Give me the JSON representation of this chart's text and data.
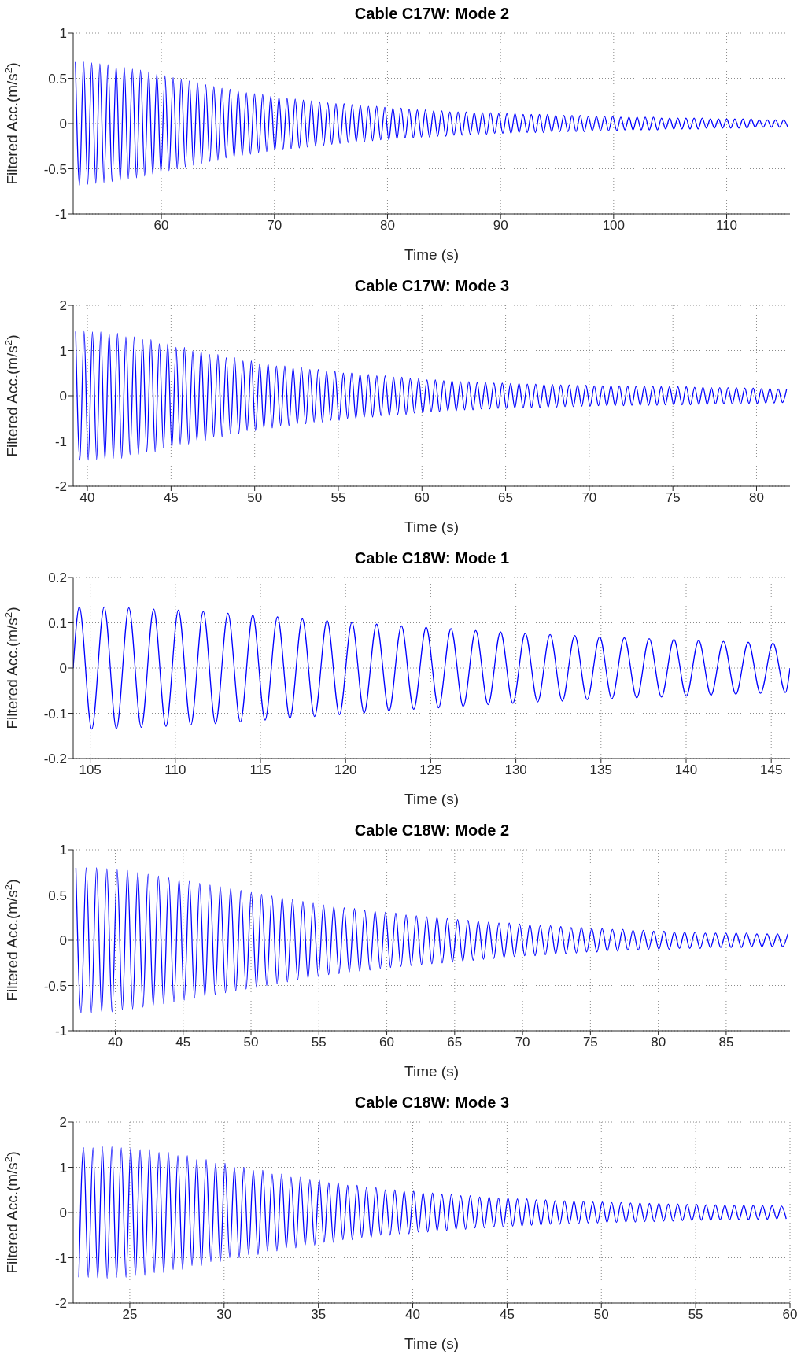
{
  "chart_data": [
    {
      "type": "line",
      "title": "Cable C17W: Mode 2",
      "xlabel": "Time (s)",
      "ylabel": "Filtered Acc.(m/s$^{2}$)",
      "xlim": [
        52.2,
        115.6
      ],
      "xticks": [
        60,
        70,
        80,
        90,
        100,
        110
      ],
      "ylim": [
        -1,
        1
      ],
      "yticks": [
        -1,
        -0.5,
        0,
        0.5,
        1
      ],
      "grid": true,
      "x": [
        52.4,
        52.76,
        53.12,
        53.48,
        53.84,
        54.2,
        54.56,
        54.92,
        55.28,
        55.64,
        56,
        56.36,
        56.72,
        57.08,
        57.44,
        57.8,
        58.16,
        58.52,
        58.88,
        59.24,
        59.6,
        59.96,
        60.32,
        60.68,
        61.04,
        61.4,
        61.76,
        62.12,
        62.48,
        62.84,
        63.2,
        63.56,
        63.92,
        64.28,
        64.64,
        65,
        65.36,
        65.72,
        66.08,
        66.44,
        66.8,
        67.16,
        67.52,
        67.88,
        68.24,
        68.6,
        68.96,
        69.32,
        69.68,
        70.04,
        70.4,
        70.76,
        71.12,
        71.48,
        71.84,
        72.2,
        72.56,
        72.92,
        73.28,
        73.64,
        74,
        74.36,
        74.72,
        75.08,
        75.44,
        75.8,
        76.16,
        76.52,
        76.88,
        77.24,
        77.6,
        77.96,
        78.32,
        78.68,
        79.04,
        79.4,
        79.76,
        80.12,
        80.48,
        80.84,
        81.2,
        81.56,
        81.92,
        82.28,
        82.64,
        83,
        83.36,
        83.72,
        84.08,
        84.44,
        84.8,
        85.16,
        85.52,
        85.88,
        86.24,
        86.6,
        86.96,
        87.32,
        87.68,
        88.04,
        88.4,
        88.76,
        89.12,
        89.48,
        89.84,
        90.2,
        90.56,
        90.92,
        91.28,
        91.64,
        92,
        92.36,
        92.72,
        93.08,
        93.44,
        93.8,
        94.16,
        94.52,
        94.88,
        95.24,
        95.6,
        95.96,
        96.32,
        96.68,
        97.04,
        97.4,
        97.76,
        98.12,
        98.48,
        98.84,
        99.2,
        99.56,
        99.92,
        100.28,
        100.64,
        101,
        101.36,
        101.72,
        102.08,
        102.44,
        102.8,
        103.16,
        103.52,
        103.88,
        104.24,
        104.6,
        104.96,
        105.32,
        105.68,
        106.04,
        106.4,
        106.76,
        107.12,
        107.48,
        107.84,
        108.2,
        108.56,
        108.92,
        109.28,
        109.64,
        110,
        110.36,
        110.72,
        111.08,
        111.44,
        111.8,
        112.16,
        112.52,
        112.88,
        113.24,
        113.6,
        113.96,
        114.32,
        114.68,
        115.04,
        115.4
      ],
      "series": [
        {
          "color": "#0000ff",
          "values": [
            0.68,
            -0.68,
            0.68,
            -0.67,
            0.67,
            -0.66,
            0.66,
            -0.65,
            0.65,
            -0.64,
            0.63,
            -0.63,
            0.62,
            -0.61,
            0.6,
            -0.6,
            0.59,
            -0.58,
            0.57,
            -0.56,
            0.55,
            -0.54,
            0.53,
            -0.52,
            0.51,
            -0.5,
            0.49,
            -0.48,
            0.47,
            -0.46,
            0.45,
            -0.44,
            0.43,
            -0.42,
            0.41,
            -0.4,
            0.39,
            -0.38,
            0.38,
            -0.37,
            0.36,
            -0.35,
            0.34,
            -0.34,
            0.33,
            -0.32,
            0.32,
            -0.31,
            0.3,
            -0.3,
            0.29,
            -0.29,
            0.28,
            -0.28,
            0.27,
            -0.27,
            0.26,
            -0.26,
            0.25,
            -0.25,
            0.24,
            -0.24,
            0.23,
            -0.23,
            0.22,
            -0.22,
            0.22,
            -0.21,
            0.21,
            -0.2,
            0.2,
            -0.2,
            0.19,
            -0.19,
            0.19,
            -0.18,
            0.18,
            -0.18,
            0.17,
            -0.17,
            0.17,
            -0.16,
            0.16,
            -0.16,
            0.15,
            -0.15,
            0.15,
            -0.15,
            0.14,
            -0.14,
            0.14,
            -0.14,
            0.13,
            -0.13,
            0.13,
            -0.13,
            0.13,
            -0.12,
            0.12,
            -0.12,
            0.12,
            -0.12,
            0.12,
            -0.11,
            0.11,
            -0.11,
            0.11,
            -0.11,
            0.11,
            -0.1,
            0.1,
            -0.1,
            0.1,
            -0.1,
            0.1,
            -0.1,
            0.1,
            -0.09,
            0.09,
            -0.09,
            0.09,
            -0.09,
            0.09,
            -0.09,
            0.09,
            -0.09,
            0.08,
            -0.08,
            0.08,
            -0.08,
            0.08,
            -0.08,
            0.08,
            -0.08,
            0.07,
            -0.07,
            0.07,
            -0.07,
            0.07,
            -0.07,
            0.07,
            -0.07,
            0.07,
            -0.07,
            0.06,
            -0.06,
            0.06,
            -0.06,
            0.06,
            -0.06,
            0.06,
            -0.06,
            0.06,
            -0.06,
            0.06,
            -0.05,
            0.05,
            -0.05,
            0.05,
            -0.05,
            0.05,
            -0.05,
            0.05,
            -0.05,
            0.05,
            -0.05,
            0.05,
            -0.04,
            0.04,
            -0.04,
            0.04,
            -0.04,
            0.04,
            -0.04,
            0.04,
            -0.04
          ]
        }
      ]
    },
    {
      "type": "line",
      "title": "Cable C17W: Mode 3",
      "xlabel": "Time (s)",
      "ylabel": "Filtered Acc.(m/s$^{2}$)",
      "xlim": [
        39.15,
        82
      ],
      "xticks": [
        40,
        45,
        50,
        55,
        60,
        65,
        70,
        75,
        80
      ],
      "ylim": [
        -2,
        2
      ],
      "yticks": [
        -2,
        -1,
        0,
        1,
        2
      ],
      "grid": true,
      "x": [
        39.3,
        39.55,
        39.8,
        40.05,
        40.3,
        40.55,
        40.8,
        41.05,
        41.3,
        41.55,
        41.8,
        42.05,
        42.3,
        42.55,
        42.8,
        43.05,
        43.3,
        43.55,
        43.8,
        44.05,
        44.3,
        44.55,
        44.8,
        45.05,
        45.3,
        45.55,
        45.8,
        46.05,
        46.3,
        46.55,
        46.8,
        47.05,
        47.3,
        47.55,
        47.8,
        48.05,
        48.3,
        48.55,
        48.8,
        49.05,
        49.3,
        49.55,
        49.8,
        50.05,
        50.3,
        50.55,
        50.8,
        51.05,
        51.3,
        51.55,
        51.8,
        52.05,
        52.3,
        52.55,
        52.8,
        53.05,
        53.3,
        53.55,
        53.8,
        54.05,
        54.3,
        54.55,
        54.8,
        55.05,
        55.3,
        55.55,
        55.8,
        56.05,
        56.3,
        56.55,
        56.8,
        57.05,
        57.3,
        57.55,
        57.8,
        58.05,
        58.3,
        58.55,
        58.8,
        59.05,
        59.3,
        59.55,
        59.8,
        60.05,
        60.3,
        60.55,
        60.8,
        61.05,
        61.3,
        61.55,
        61.8,
        62.05,
        62.3,
        62.55,
        62.8,
        63.05,
        63.3,
        63.55,
        63.8,
        64.05,
        64.3,
        64.55,
        64.8,
        65.05,
        65.3,
        65.55,
        65.8,
        66.05,
        66.3,
        66.55,
        66.8,
        67.05,
        67.3,
        67.55,
        67.8,
        68.05,
        68.3,
        68.55,
        68.8,
        69.05,
        69.3,
        69.55,
        69.8,
        70.05,
        70.3,
        70.55,
        70.8,
        71.05,
        71.3,
        71.55,
        71.8,
        72.05,
        72.3,
        72.55,
        72.8,
        73.05,
        73.3,
        73.55,
        73.8,
        74.05,
        74.3,
        74.55,
        74.8,
        75.05,
        75.3,
        75.55,
        75.8,
        76.05,
        76.3,
        76.55,
        76.8,
        77.05,
        77.3,
        77.55,
        77.8,
        78.05,
        78.3,
        78.55,
        78.8,
        79.05,
        79.3,
        79.55,
        79.8,
        80.05,
        80.3,
        80.55,
        80.8,
        81.05,
        81.3,
        81.55,
        81.8
      ],
      "series": [
        {
          "color": "#0000ff",
          "values": [
            1.42,
            -1.42,
            1.42,
            -1.42,
            1.41,
            -1.41,
            1.41,
            -1.41,
            1.38,
            -1.38,
            1.38,
            -1.38,
            1.3,
            -1.3,
            1.3,
            -1.3,
            1.24,
            -1.24,
            1.24,
            -1.24,
            1.15,
            -1.15,
            1.15,
            -1.15,
            1.07,
            -1.07,
            1.07,
            -1.07,
            0.99,
            -0.99,
            0.99,
            -0.99,
            0.91,
            -0.91,
            0.91,
            -0.91,
            0.84,
            -0.84,
            0.84,
            -0.84,
            0.77,
            -0.77,
            0.77,
            -0.77,
            0.71,
            -0.71,
            0.71,
            -0.71,
            0.66,
            -0.66,
            0.66,
            -0.66,
            0.62,
            -0.62,
            0.62,
            -0.62,
            0.58,
            -0.58,
            0.58,
            -0.58,
            0.54,
            -0.54,
            0.54,
            -0.54,
            0.5,
            -0.5,
            0.5,
            -0.5,
            0.47,
            -0.47,
            0.47,
            -0.47,
            0.44,
            -0.44,
            0.44,
            -0.44,
            0.41,
            -0.41,
            0.41,
            -0.41,
            0.38,
            -0.38,
            0.38,
            -0.38,
            0.35,
            -0.35,
            0.35,
            -0.35,
            0.33,
            -0.33,
            0.33,
            -0.33,
            0.31,
            -0.31,
            0.31,
            -0.31,
            0.29,
            -0.29,
            0.29,
            -0.29,
            0.28,
            -0.28,
            0.28,
            -0.28,
            0.27,
            -0.27,
            0.27,
            -0.27,
            0.26,
            -0.26,
            0.26,
            -0.26,
            0.25,
            -0.25,
            0.25,
            -0.25,
            0.24,
            -0.24,
            0.24,
            -0.24,
            0.23,
            -0.23,
            0.23,
            -0.23,
            0.22,
            -0.22,
            0.22,
            -0.22,
            0.22,
            -0.22,
            0.22,
            -0.22,
            0.21,
            -0.21,
            0.21,
            -0.21,
            0.21,
            -0.21,
            0.21,
            -0.21,
            0.2,
            -0.2,
            0.2,
            -0.2,
            0.2,
            -0.2,
            0.2,
            -0.2,
            0.19,
            -0.19,
            0.19,
            -0.19,
            0.18,
            -0.18,
            0.18,
            -0.18,
            0.18,
            -0.18,
            0.18,
            -0.18,
            0.17,
            -0.17,
            0.17,
            -0.17,
            0.16,
            -0.16,
            0.16,
            -0.16,
            0.15,
            -0.15,
            0.15
          ]
        }
      ]
    },
    {
      "type": "line",
      "title": "Cable C18W: Mode 1",
      "xlabel": "Time (s)",
      "ylabel": "Filtered Acc.(m/s$^{2}$)",
      "xlim": [
        104,
        146.1
      ],
      "xticks": [
        105,
        110,
        115,
        120,
        125,
        130,
        135,
        140,
        145
      ],
      "ylim": [
        -0.2,
        0.2
      ],
      "yticks": [
        -0.2,
        -0.1,
        0,
        0.1,
        0.2
      ],
      "grid": true,
      "x": [
        104,
        104.36,
        105.09,
        105.82,
        106.54,
        107.27,
        108,
        108.73,
        109.45,
        110.18,
        110.91,
        111.64,
        112.36,
        113.09,
        113.82,
        114.55,
        115.27,
        116,
        116.73,
        117.46,
        118.18,
        118.91,
        119.64,
        120.37,
        121.09,
        121.82,
        122.55,
        123.28,
        124,
        124.73,
        125.46,
        126.19,
        126.91,
        127.64,
        128.37,
        129.1,
        129.82,
        130.55,
        131.28,
        132.01,
        132.73,
        133.46,
        134.19,
        134.92,
        135.64,
        136.37,
        137.1,
        137.83,
        138.55,
        139.28,
        140.01,
        140.74,
        141.46,
        142.19,
        142.92,
        143.65,
        144.37,
        145.1,
        145.83,
        146.1
      ],
      "series": [
        {
          "color": "#0000ff",
          "values": [
            0,
            0.135,
            -0.135,
            0.135,
            -0.134,
            0.133,
            -0.131,
            0.13,
            -0.129,
            0.128,
            -0.126,
            0.125,
            -0.123,
            0.121,
            -0.119,
            0.117,
            -0.115,
            0.113,
            -0.111,
            0.109,
            -0.107,
            0.105,
            -0.103,
            0.101,
            -0.099,
            0.097,
            -0.095,
            0.093,
            -0.091,
            0.09,
            -0.088,
            0.087,
            -0.085,
            0.083,
            -0.081,
            0.08,
            -0.078,
            0.077,
            -0.075,
            0.074,
            -0.073,
            0.072,
            -0.07,
            0.069,
            -0.068,
            0.067,
            -0.066,
            0.065,
            -0.064,
            0.063,
            -0.062,
            0.061,
            -0.06,
            0.059,
            -0.058,
            0.057,
            -0.056,
            0.055,
            -0.054,
            0
          ]
        }
      ]
    },
    {
      "type": "line",
      "title": "Cable C18W: Mode 2",
      "xlabel": "Time (s)",
      "ylabel": "Filtered Acc.(m/s$^{2}$)",
      "xlim": [
        36.9,
        89.7
      ],
      "xticks": [
        40,
        45,
        50,
        55,
        60,
        65,
        70,
        75,
        80,
        85
      ],
      "ylim": [
        -1,
        1
      ],
      "yticks": [
        -1,
        -0.5,
        0,
        0.5,
        1
      ],
      "grid": true,
      "x": [
        37.1,
        37.48,
        37.86,
        38.24,
        38.62,
        39,
        39.38,
        39.76,
        40.14,
        40.52,
        40.9,
        41.28,
        41.66,
        42.04,
        42.42,
        42.8,
        43.18,
        43.56,
        43.94,
        44.32,
        44.7,
        45.08,
        45.46,
        45.84,
        46.22,
        46.6,
        46.98,
        47.36,
        47.74,
        48.12,
        48.5,
        48.88,
        49.26,
        49.64,
        50.02,
        50.4,
        50.78,
        51.16,
        51.54,
        51.92,
        52.3,
        52.68,
        53.06,
        53.44,
        53.82,
        54.2,
        54.58,
        54.96,
        55.34,
        55.72,
        56.1,
        56.48,
        56.86,
        57.24,
        57.62,
        58,
        58.38,
        58.76,
        59.14,
        59.52,
        59.9,
        60.28,
        60.66,
        61.04,
        61.42,
        61.8,
        62.18,
        62.56,
        62.94,
        63.32,
        63.7,
        64.08,
        64.46,
        64.84,
        65.22,
        65.6,
        65.98,
        66.36,
        66.74,
        67.12,
        67.5,
        67.88,
        68.26,
        68.64,
        69.02,
        69.4,
        69.78,
        70.16,
        70.54,
        70.92,
        71.3,
        71.68,
        72.06,
        72.44,
        72.82,
        73.2,
        73.58,
        73.96,
        74.34,
        74.72,
        75.1,
        75.48,
        75.86,
        76.24,
        76.62,
        77,
        77.38,
        77.76,
        78.14,
        78.52,
        78.9,
        79.28,
        79.66,
        80.04,
        80.42,
        80.8,
        81.18,
        81.56,
        81.94,
        82.32,
        82.7,
        83.08,
        83.46,
        83.84,
        84.22,
        84.6,
        84.98,
        85.36,
        85.74,
        86.12,
        86.5,
        86.88,
        87.26,
        87.64,
        88.02,
        88.4,
        88.78,
        89.16,
        89.54
      ],
      "series": [
        {
          "color": "#0000ff",
          "values": [
            0.8,
            -0.8,
            0.8,
            -0.8,
            0.8,
            -0.79,
            0.79,
            -0.79,
            0.78,
            -0.77,
            0.77,
            -0.76,
            0.75,
            -0.74,
            0.73,
            -0.72,
            0.71,
            -0.7,
            0.69,
            -0.68,
            0.67,
            -0.66,
            0.65,
            -0.64,
            0.63,
            -0.62,
            0.61,
            -0.6,
            0.59,
            -0.58,
            0.57,
            -0.56,
            0.55,
            -0.54,
            0.53,
            -0.52,
            0.51,
            -0.5,
            0.49,
            -0.48,
            0.47,
            -0.46,
            0.45,
            -0.44,
            0.43,
            -0.42,
            0.41,
            -0.4,
            0.39,
            -0.38,
            0.37,
            -0.37,
            0.36,
            -0.35,
            0.35,
            -0.34,
            0.33,
            -0.33,
            0.32,
            -0.31,
            0.31,
            -0.3,
            0.3,
            -0.29,
            0.28,
            -0.28,
            0.27,
            -0.27,
            0.26,
            -0.26,
            0.25,
            -0.25,
            0.24,
            -0.24,
            0.23,
            -0.23,
            0.22,
            -0.22,
            0.21,
            -0.21,
            0.2,
            -0.2,
            0.19,
            -0.19,
            0.19,
            -0.18,
            0.18,
            -0.17,
            0.17,
            -0.17,
            0.16,
            -0.16,
            0.16,
            -0.15,
            0.15,
            -0.15,
            0.14,
            -0.14,
            0.14,
            -0.13,
            0.13,
            -0.13,
            0.13,
            -0.12,
            0.12,
            -0.12,
            0.12,
            -0.11,
            0.11,
            -0.11,
            0.11,
            -0.1,
            0.1,
            -0.1,
            0.1,
            -0.1,
            0.09,
            -0.09,
            0.09,
            -0.09,
            0.09,
            -0.09,
            0.08,
            -0.08,
            0.08,
            -0.08,
            0.08,
            -0.08,
            0.08,
            -0.08,
            0.08,
            -0.07,
            0.07,
            -0.07,
            0.07,
            -0.07,
            0.07,
            -0.07,
            0.07
          ]
        }
      ]
    },
    {
      "type": "line",
      "title": "Cable C18W: Mode 3",
      "xlabel": "Time (s)",
      "ylabel": "Filtered Acc.(m/s$^{2}$)",
      "xlim": [
        22,
        60
      ],
      "xticks": [
        25,
        30,
        35,
        40,
        45,
        50,
        55,
        60
      ],
      "ylim": [
        -2,
        2
      ],
      "yticks": [
        -2,
        -1,
        0,
        1,
        2
      ],
      "grid": true,
      "x": [
        22.3,
        22.55,
        22.8,
        23.05,
        23.3,
        23.55,
        23.8,
        24.05,
        24.3,
        24.55,
        24.8,
        25.05,
        25.3,
        25.55,
        25.8,
        26.05,
        26.3,
        26.55,
        26.8,
        27.05,
        27.3,
        27.55,
        27.8,
        28.05,
        28.3,
        28.55,
        28.8,
        29.05,
        29.3,
        29.55,
        29.8,
        30.05,
        30.3,
        30.55,
        30.8,
        31.05,
        31.3,
        31.55,
        31.8,
        32.05,
        32.3,
        32.55,
        32.8,
        33.05,
        33.3,
        33.55,
        33.8,
        34.05,
        34.3,
        34.55,
        34.8,
        35.05,
        35.3,
        35.55,
        35.8,
        36.05,
        36.3,
        36.55,
        36.8,
        37.05,
        37.3,
        37.55,
        37.8,
        38.05,
        38.3,
        38.55,
        38.8,
        39.05,
        39.3,
        39.55,
        39.8,
        40.05,
        40.3,
        40.55,
        40.8,
        41.05,
        41.3,
        41.55,
        41.8,
        42.05,
        42.3,
        42.55,
        42.8,
        43.05,
        43.3,
        43.55,
        43.8,
        44.05,
        44.3,
        44.55,
        44.8,
        45.05,
        45.3,
        45.55,
        45.8,
        46.05,
        46.3,
        46.55,
        46.8,
        47.05,
        47.3,
        47.55,
        47.8,
        48.05,
        48.3,
        48.55,
        48.8,
        49.05,
        49.3,
        49.55,
        49.8,
        50.05,
        50.3,
        50.55,
        50.8,
        51.05,
        51.3,
        51.55,
        51.8,
        52.05,
        52.3,
        52.55,
        52.8,
        53.05,
        53.3,
        53.55,
        53.8,
        54.05,
        54.3,
        54.55,
        54.8,
        55.05,
        55.3,
        55.55,
        55.8,
        56.05,
        56.3,
        56.55,
        56.8,
        57.05,
        57.3,
        57.55,
        57.8,
        58.05,
        58.3,
        58.55,
        58.8,
        59.05,
        59.3,
        59.55,
        59.8
      ],
      "series": [
        {
          "color": "#0000ff",
          "values": [
            -1.43,
            1.43,
            -1.43,
            1.43,
            -1.45,
            1.45,
            -1.45,
            1.45,
            -1.43,
            1.43,
            -1.43,
            1.43,
            -1.39,
            1.39,
            -1.39,
            1.39,
            -1.33,
            1.33,
            -1.33,
            1.33,
            -1.26,
            1.26,
            -1.26,
            1.26,
            -1.17,
            1.17,
            -1.17,
            1.17,
            -1.09,
            1.09,
            -1.09,
            1.09,
            -1,
            1,
            -1,
            1,
            -0.93,
            0.93,
            -0.93,
            0.93,
            -0.85,
            0.85,
            -0.85,
            0.85,
            -0.78,
            0.78,
            -0.78,
            0.78,
            -0.72,
            0.72,
            -0.72,
            0.72,
            -0.66,
            0.66,
            -0.66,
            0.66,
            -0.6,
            0.6,
            -0.6,
            0.6,
            -0.55,
            0.55,
            -0.55,
            0.55,
            -0.5,
            0.5,
            -0.5,
            0.5,
            -0.47,
            0.47,
            -0.47,
            0.47,
            -0.43,
            0.43,
            -0.43,
            0.43,
            -0.4,
            0.4,
            -0.4,
            0.4,
            -0.37,
            0.37,
            -0.37,
            0.37,
            -0.34,
            0.34,
            -0.34,
            0.34,
            -0.32,
            0.32,
            -0.32,
            0.32,
            -0.3,
            0.3,
            -0.3,
            0.3,
            -0.28,
            0.28,
            -0.28,
            0.28,
            -0.26,
            0.26,
            -0.26,
            0.26,
            -0.25,
            0.25,
            -0.25,
            0.25,
            -0.23,
            0.23,
            -0.23,
            0.23,
            -0.22,
            0.22,
            -0.22,
            0.22,
            -0.21,
            0.21,
            -0.21,
            0.21,
            -0.2,
            0.2,
            -0.2,
            0.2,
            -0.19,
            0.19,
            -0.19,
            0.19,
            -0.18,
            0.18,
            -0.18,
            0.18,
            -0.17,
            0.17,
            -0.17,
            0.17,
            -0.16,
            0.16,
            -0.16,
            0.16,
            -0.16,
            0.16,
            -0.16,
            0.16,
            -0.15,
            0.15,
            -0.15,
            0.15,
            -0.14,
            0.14,
            -0.14
          ]
        }
      ]
    }
  ]
}
